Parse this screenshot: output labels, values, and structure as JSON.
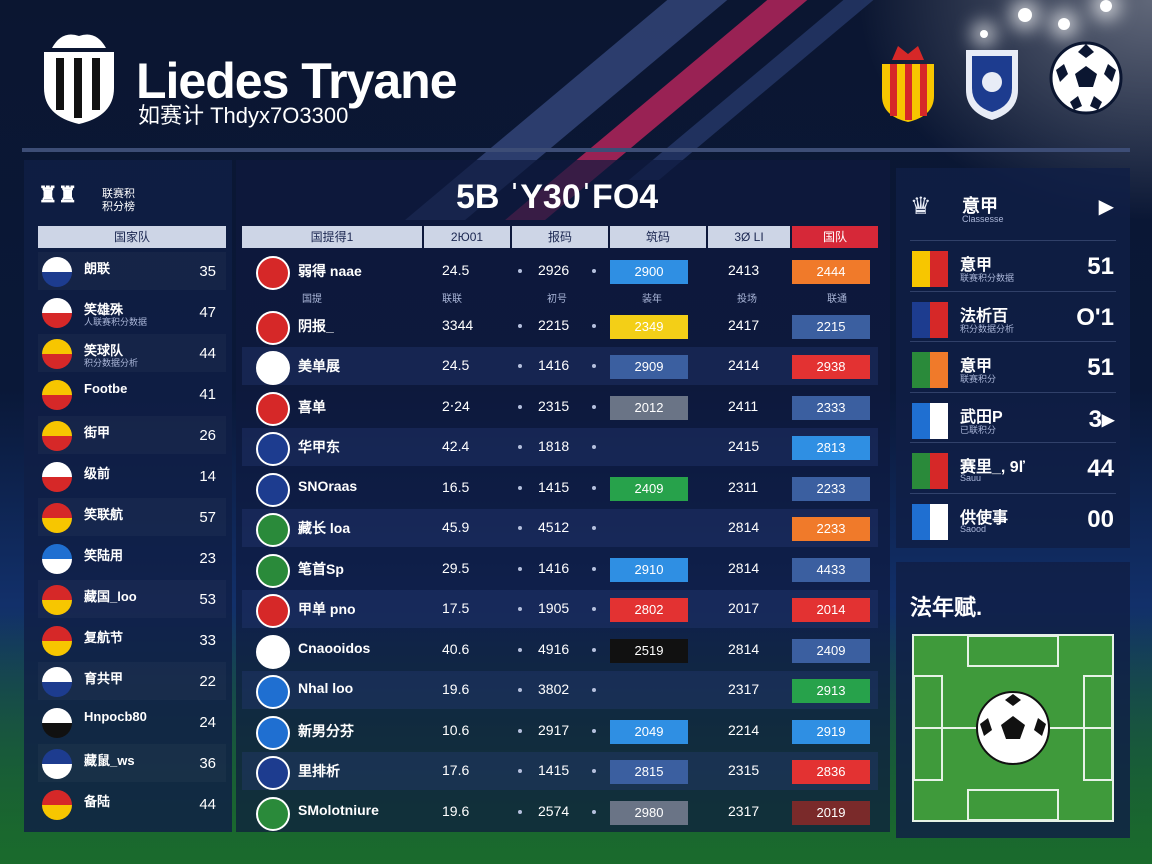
{
  "header": {
    "title": "Liedes Tryane",
    "subtitle": "如赛计 Thdyx7O3300"
  },
  "left_panel": {
    "title_line1": "联赛积",
    "title_line2": "积分榜",
    "column_header": "国家队",
    "rows": [
      {
        "name": "朗联",
        "sub": "",
        "value": "35",
        "flag": [
          "#ffffff",
          "#1d3c8f"
        ]
      },
      {
        "name": "笑雄殊",
        "sub": "人联赛积分数据",
        "value": "47",
        "flag": [
          "#ffffff",
          "#d62828"
        ]
      },
      {
        "name": "笑球队",
        "sub": "积分数据分析",
        "value": "44",
        "flag": [
          "#f7c600",
          "#d62828"
        ]
      },
      {
        "name": "Footbe",
        "sub": "",
        "value": "41",
        "flag": [
          "#f7c600",
          "#d62828"
        ]
      },
      {
        "name": "街甲",
        "sub": "",
        "value": "26",
        "flag": [
          "#f7c600",
          "#d62828"
        ]
      },
      {
        "name": "级前",
        "sub": "",
        "value": "14",
        "flag": [
          "#ffffff",
          "#d62828"
        ]
      },
      {
        "name": "笑联航",
        "sub": "",
        "value": "57",
        "flag": [
          "#d62828",
          "#f7c600"
        ]
      },
      {
        "name": "笑陆用",
        "sub": "",
        "value": "23",
        "flag": [
          "#1f6fd1",
          "#ffffff"
        ]
      },
      {
        "name": "藏国_loo",
        "sub": "",
        "value": "53",
        "flag": [
          "#d62828",
          "#f7c600"
        ]
      },
      {
        "name": "复航节",
        "sub": "",
        "value": "33",
        "flag": [
          "#d62828",
          "#f7c600"
        ]
      },
      {
        "name": "育共甲",
        "sub": "",
        "value": "22",
        "flag": [
          "#ffffff",
          "#1d3c8f"
        ]
      },
      {
        "name": "Hnpocb80",
        "sub": "",
        "value": "24",
        "flag": [
          "#ffffff",
          "#111111"
        ]
      },
      {
        "name": "藏鼠_ws",
        "sub": "",
        "value": "36",
        "flag": [
          "#1d3c8f",
          "#ffffff"
        ]
      },
      {
        "name": "备陆",
        "sub": "",
        "value": "44",
        "flag": [
          "#d62828",
          "#f7c600"
        ]
      }
    ]
  },
  "center": {
    "title": "5B ˈY30ˈFO4",
    "headers": [
      "国提得1",
      "2Ю01",
      "报码",
      "筑码",
      "3Ø LI",
      "国队"
    ],
    "subheaders": [
      "国提",
      "联联",
      "初号",
      "装年",
      "投场",
      "联通"
    ],
    "rows": [
      {
        "name": "弱得 naae",
        "a": "24.5",
        "b": "2926",
        "c": "2900",
        "d": "2413",
        "e": "2444",
        "icon": "#d62828",
        "cc": "#2f8fe3",
        "ec": "#f07a2a",
        "alt": false
      },
      {
        "name": "阴报_",
        "a": "3344",
        "b": "2215",
        "c": "2349",
        "d": "2417",
        "e": "2215",
        "icon": "#d62828",
        "cc": "#f3cf17",
        "ec": "#3b5fa0",
        "alt": false
      },
      {
        "name": "美单展",
        "a": "24.5",
        "b": "1416",
        "c": "2909",
        "d": "2414",
        "e": "2938",
        "icon": "#ffffff",
        "cc": "#3b5fa0",
        "ec": "#e33232",
        "alt": true
      },
      {
        "name": "喜单",
        "a": "2‧24",
        "b": "2315",
        "c": "2012",
        "d": "2411",
        "e": "2333",
        "icon": "#d62828",
        "cc": "#6a7486",
        "ec": "#3b5fa0",
        "alt": false
      },
      {
        "name": "华甲东",
        "a": "42.4",
        "b": "1818",
        "c": "",
        "d": "2415",
        "e": "2813",
        "icon": "#1d3c8f",
        "cc": "#2f8fe3",
        "ec": "#2f8fe3",
        "alt": true
      },
      {
        "name": "SNOraas",
        "a": "16.5",
        "b": "1415",
        "c": "2409",
        "d": "2311",
        "e": "2233",
        "icon": "#1d3c8f",
        "cc": "#27a24b",
        "ec": "#3b5fa0",
        "alt": false
      },
      {
        "name": "藏长 loa",
        "a": "45.9",
        "b": "4512",
        "c": "",
        "d": "2814",
        "e": "2233",
        "icon": "#2a8a3a",
        "cc": "",
        "ec": "#f07a2a",
        "alt": true
      },
      {
        "name": "笔首Sp",
        "a": "29.5",
        "b": "1416",
        "c": "2910",
        "d": "2814",
        "e": "4433",
        "icon": "#2a8a3a",
        "cc": "#2f8fe3",
        "ec": "#3b5fa0",
        "alt": false
      },
      {
        "name": "甲单      pno",
        "a": "17.5",
        "b": "1905",
        "c": "2802",
        "d": "2017",
        "e": "2014",
        "icon": "#d62828",
        "cc": "#e33232",
        "ec": "#e33232",
        "alt": true
      },
      {
        "name": "Cnaooidos",
        "a": "40.6",
        "b": "4916",
        "c": "2519",
        "d": "2814",
        "e": "2409",
        "icon": "#ffffff",
        "cc": "#111111",
        "ec": "#3b5fa0",
        "alt": false
      },
      {
        "name": "Nhal loo",
        "a": "19.6",
        "b": "3802",
        "c": "",
        "d": "2317",
        "e": "2913",
        "icon": "#1f6fd1",
        "cc": "#2f8fe3",
        "ec": "#27a24b",
        "alt": true
      },
      {
        "name": "新男分芬",
        "a": "10.6",
        "b": "2917",
        "c": "2049",
        "d": "2214",
        "e": "2919",
        "icon": "#1f6fd1",
        "cc": "#2f8fe3",
        "ec": "#2f8fe3",
        "alt": false
      },
      {
        "name": "里排析",
        "a": "17.6",
        "b": "1415",
        "c": "2815",
        "d": "2315",
        "e": "2836",
        "icon": "#1d3c8f",
        "cc": "#3b5fa0",
        "ec": "#e33232",
        "alt": true
      },
      {
        "name": "SMolotniure",
        "a": "19.6",
        "b": "2574",
        "c": "2980",
        "d": "2317",
        "e": "2019",
        "icon": "#2a8a3a",
        "cc": "#6a7486",
        "ec": "#7a2a2a",
        "alt": false
      }
    ]
  },
  "right_panel": {
    "title": "意甲",
    "subtitle": "Classesse",
    "rows": [
      {
        "name": "意甲",
        "sub": "联赛积分数据",
        "value": "51",
        "flag": [
          "#f7c600",
          "#d62828"
        ]
      },
      {
        "name": "法析百",
        "sub": "积分数据分析",
        "value": "O'1",
        "flag": [
          "#1d3c8f",
          "#d62828"
        ]
      },
      {
        "name": "意甲",
        "sub": "联赛积分",
        "value": "51",
        "flag": [
          "#2a8a3a",
          "#f07a2a"
        ]
      },
      {
        "name": "武田P",
        "sub": "已联积分",
        "value": "3▸",
        "flag": [
          "#1f6fd1",
          "#ffffff"
        ]
      },
      {
        "name": "赛里_, 9ľ",
        "sub": "Sauu",
        "value": "44",
        "flag": [
          "#2a8a3a",
          "#d62828"
        ]
      },
      {
        "name": "供使事",
        "sub": "Saood",
        "value": "00",
        "flag": [
          "#1f6fd1",
          "#ffffff"
        ]
      }
    ]
  },
  "bottom_right": {
    "title": "法年赋."
  }
}
